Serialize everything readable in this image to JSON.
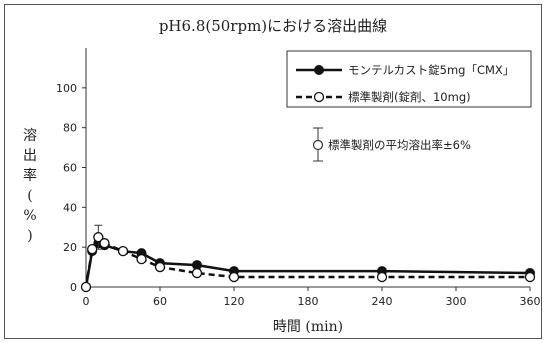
{
  "chart_data": {
    "type": "line",
    "title": "pH6.8(50rpm)における溶出曲線",
    "xlabel": "時間 (min)",
    "ylabel": "溶出率(%)",
    "xlim": [
      0,
      360
    ],
    "ylim": [
      0,
      120
    ],
    "xticks": [
      0,
      60,
      120,
      180,
      240,
      300,
      360
    ],
    "yticks": [
      0,
      20,
      40,
      60,
      80,
      100
    ],
    "legend_position": "top-right",
    "series": [
      {
        "name": "モンテルカスト錠5mg「CMX」",
        "style": "solid-filled-circle",
        "x": [
          0,
          5,
          10,
          15,
          30,
          45,
          60,
          90,
          120,
          240,
          360
        ],
        "y": [
          0,
          18,
          22,
          21,
          18,
          17,
          12,
          11,
          8,
          8,
          7
        ]
      },
      {
        "name": "標準製剤(錠剤、10mg)",
        "style": "dashed-open-circle",
        "x": [
          0,
          5,
          10,
          15,
          30,
          45,
          60,
          90,
          120,
          240,
          360
        ],
        "y": [
          0,
          19,
          25,
          22,
          18,
          14,
          10,
          7,
          5,
          5,
          5
        ],
        "error_bars": [
          {
            "x": 10,
            "low": 19,
            "high": 31
          }
        ]
      }
    ],
    "annotation": {
      "label": "標準製剤の平均溶出率±6%"
    }
  }
}
